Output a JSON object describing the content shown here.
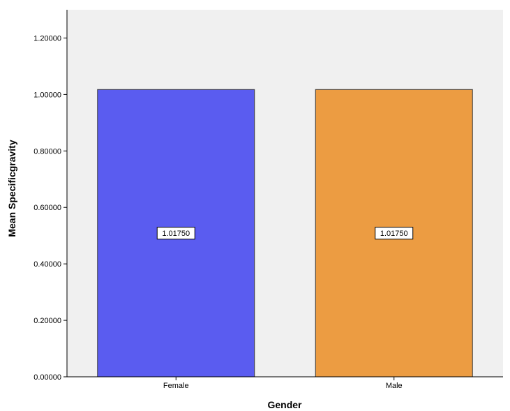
{
  "chart_data": {
    "type": "bar",
    "categories": [
      "Female",
      "Male"
    ],
    "values": [
      1.0175,
      1.0175
    ],
    "data_labels": [
      "1.01750",
      "1.01750"
    ],
    "xlabel": "Gender",
    "ylabel": "Mean Specificgravity",
    "ylim": [
      0,
      1.3
    ],
    "yticks": [
      0,
      0.2,
      0.4,
      0.6,
      0.8,
      1.0,
      1.2
    ],
    "ytick_labels": [
      "0.00000",
      "0.20000",
      "0.40000",
      "0.60000",
      "0.80000",
      "1.00000",
      "1.20000"
    ],
    "grid": false,
    "colors": {
      "plot_background": "#f0f0f0",
      "bars": [
        "#5a5cf0",
        "#ec9c42"
      ],
      "bar_edge": "#3a3a3a"
    }
  }
}
